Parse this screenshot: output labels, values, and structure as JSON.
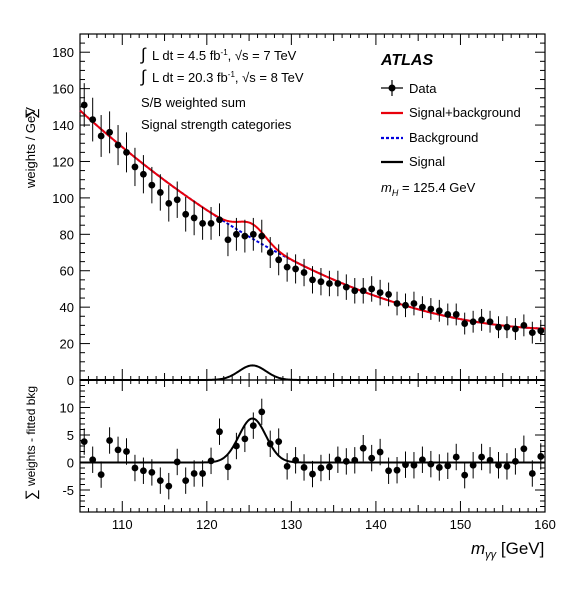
{
  "colors": {
    "data": "#000000",
    "sig_bkg": "#e8000b",
    "background": "#0000dd",
    "signal": "#000000"
  },
  "chart_data": [
    {
      "type": "scatter",
      "panel": "main",
      "ylabel_sum": "∑",
      "ylabel": "weights / GeV",
      "xlim": [
        105,
        160
      ],
      "ylim": [
        0,
        190
      ],
      "yticks": [
        0,
        20,
        40,
        60,
        80,
        100,
        120,
        140,
        160,
        180
      ],
      "experiment": "ATLAS",
      "annotations": {
        "lumi7": "L dt = 4.5 fb",
        "lumi7_sup": "-1",
        "lumi7_rest": ", √s = 7 TeV",
        "lumi8": "L dt = 20.3 fb",
        "lumi8_sup": "-1",
        "lumi8_rest": ", √s = 8 TeV",
        "line3": "S/B weighted sum",
        "line4": "Signal strength categories",
        "mass_prefix": "m",
        "mass_sub": "H",
        "mass_rest": " = 125.4 GeV"
      },
      "legend": [
        "Data",
        "Signal+background",
        "Background",
        "Signal"
      ],
      "series": [
        {
          "name": "Data",
          "x": [
            105.5,
            106.5,
            107.5,
            108.5,
            109.5,
            110.5,
            111.5,
            112.5,
            113.5,
            114.5,
            115.5,
            116.5,
            117.5,
            118.5,
            119.5,
            120.5,
            121.5,
            122.5,
            123.5,
            124.5,
            125.5,
            126.5,
            127.5,
            128.5,
            129.5,
            130.5,
            131.5,
            132.5,
            133.5,
            134.5,
            135.5,
            136.5,
            137.5,
            138.5,
            139.5,
            140.5,
            141.5,
            142.5,
            143.5,
            144.5,
            145.5,
            146.5,
            147.5,
            148.5,
            149.5,
            150.5,
            151.5,
            152.5,
            153.5,
            154.5,
            155.5,
            156.5,
            157.5,
            158.5,
            159.5
          ],
          "y": [
            151,
            143,
            134,
            136,
            129,
            125,
            117,
            113,
            107,
            103,
            97,
            99,
            91,
            89,
            86,
            86,
            88,
            77,
            80,
            79,
            80,
            79,
            70,
            66,
            62,
            61,
            59,
            55,
            54,
            53,
            53,
            51,
            49,
            49,
            50,
            48,
            47,
            42,
            41,
            42,
            40,
            39,
            38,
            36,
            36,
            31,
            32,
            33,
            32,
            29,
            29,
            28,
            30,
            26,
            27
          ],
          "yerr": [
            12,
            12,
            11.5,
            11.5,
            11,
            11,
            10.5,
            10.5,
            10,
            10,
            10,
            10,
            9.5,
            9.5,
            9,
            9,
            9,
            9,
            9,
            9,
            9,
            9,
            8.5,
            8.5,
            8,
            8,
            7.5,
            7.5,
            7.5,
            7,
            7,
            7,
            7,
            7,
            7,
            7,
            6.5,
            6.5,
            6.5,
            6.5,
            6,
            6,
            6,
            6,
            6,
            6,
            6,
            6,
            6,
            6,
            6,
            6,
            6,
            6,
            6
          ]
        }
      ],
      "curves": [
        "Signal+background",
        "Background",
        "Signal"
      ],
      "signal_peak": {
        "mass": 125.4,
        "height": 8,
        "sigma": 1.6
      }
    },
    {
      "type": "scatter",
      "panel": "residual",
      "ylabel_sum": "∑",
      "ylabel": "weights - fitted bkg",
      "xlabel_var": "m",
      "xlabel_sub": "γγ",
      "xlabel_unit": " [GeV]",
      "xlim": [
        105,
        160
      ],
      "ylim": [
        -9,
        15
      ],
      "yticks": [
        -5,
        0,
        5,
        10
      ],
      "xticks": [
        110,
        120,
        130,
        140,
        150,
        160
      ],
      "series": [
        {
          "name": "Data",
          "x": [
            105.5,
            106.5,
            107.5,
            108.5,
            109.5,
            110.5,
            111.5,
            112.5,
            113.5,
            114.5,
            115.5,
            116.5,
            117.5,
            118.5,
            119.5,
            120.5,
            121.5,
            122.5,
            123.5,
            124.5,
            125.5,
            126.5,
            127.5,
            128.5,
            129.5,
            130.5,
            131.5,
            132.5,
            133.5,
            134.5,
            135.5,
            136.5,
            137.5,
            138.5,
            139.5,
            140.5,
            141.5,
            142.5,
            143.5,
            144.5,
            145.5,
            146.5,
            147.5,
            148.5,
            149.5,
            150.5,
            151.5,
            152.5,
            153.5,
            154.5,
            155.5,
            156.5,
            157.5,
            158.5,
            159.5
          ],
          "y": [
            3.8,
            0.5,
            -2.2,
            4,
            2.3,
            2,
            -1,
            -1.5,
            -1.8,
            -3.3,
            -4.3,
            0.1,
            -3.3,
            -2,
            -2,
            0.3,
            5.6,
            -0.8,
            3,
            4.3,
            6.7,
            9.2,
            3.4,
            3.8,
            -0.7,
            0.4,
            -0.9,
            -2.1,
            -1,
            -0.8,
            0.5,
            0.2,
            0.4,
            2.6,
            0.8,
            1.9,
            -1.5,
            -1.4,
            -0.4,
            -0.5,
            0.5,
            -0.3,
            -0.9,
            -0.6,
            1,
            -2.3,
            -0.5,
            1,
            0.4,
            -0.5,
            -0.7,
            0.2,
            2.5,
            -2,
            1.1
          ],
          "yerr": [
            2.4,
            2.4,
            2.4,
            2.4,
            2.4,
            2.4,
            2.4,
            2.4,
            2.4,
            2.4,
            2.4,
            2.4,
            2.4,
            2.4,
            2.4,
            2.4,
            2.4,
            2.4,
            2.4,
            2.4,
            2.4,
            2.4,
            2.4,
            2.4,
            2.4,
            2.4,
            2.4,
            2.4,
            2.4,
            2.4,
            2.4,
            2.4,
            2.4,
            2.4,
            2.4,
            2.4,
            2.4,
            2.4,
            2.4,
            2.4,
            2.4,
            2.4,
            2.4,
            2.4,
            2.4,
            2.4,
            2.4,
            2.4,
            2.4,
            2.4,
            2.4,
            2.4,
            2.4,
            2.4,
            2.4
          ]
        }
      ],
      "curves": [
        "Signal"
      ]
    }
  ]
}
